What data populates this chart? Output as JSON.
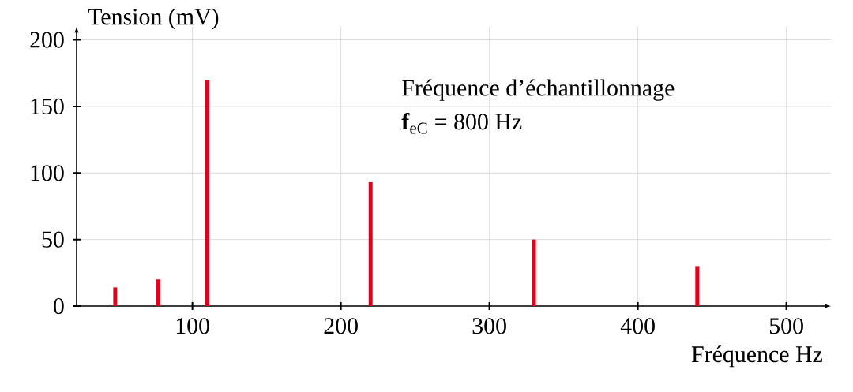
{
  "chart_data": {
    "type": "bar",
    "xlabel": "Fréquence Hz",
    "ylabel": "Tension (mV)",
    "x": [
      48,
      77,
      110,
      220,
      330,
      440
    ],
    "values": [
      14,
      20,
      170,
      93,
      50,
      30
    ],
    "color": "#e3001b",
    "xlim": [
      22,
      530
    ],
    "ylim": [
      0,
      210
    ],
    "xticks": [
      100,
      200,
      300,
      400,
      500
    ],
    "yticks": [
      0,
      50,
      100,
      150,
      200
    ],
    "grid": true,
    "annotations": [
      "Fréquence d’échantillonnage",
      "**f**$_{eC}$ = 800 Hz"
    ]
  }
}
